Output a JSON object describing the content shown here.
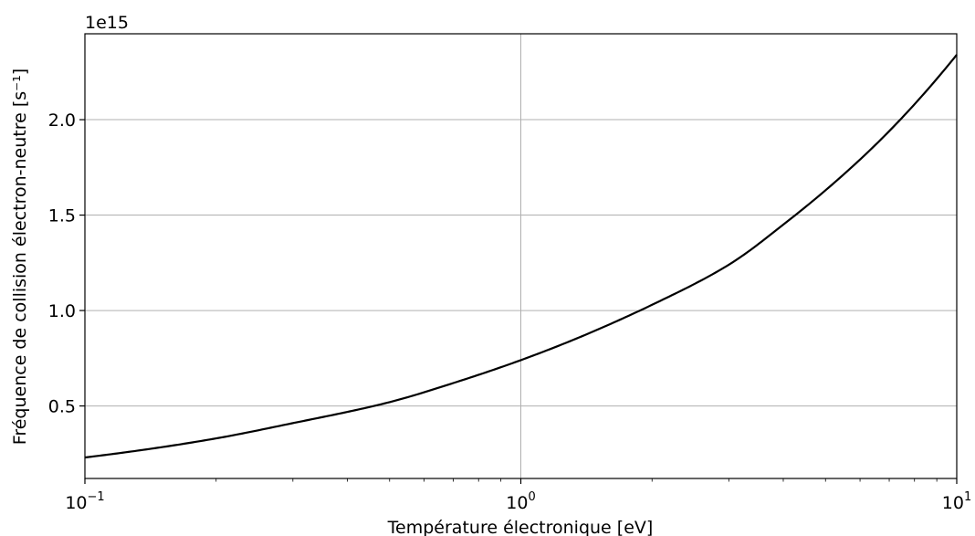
{
  "chart_data": {
    "type": "line",
    "xlabel": "Température électronique [eV]",
    "ylabel": "Fréquence de collision électron-neutre [s⁻¹]",
    "y_offset_label": "1e15",
    "x_scale": "log",
    "xlim": [
      0.1,
      10
    ],
    "ylim": [
      120000000000000.0,
      2450000000000000.0
    ],
    "grid": true,
    "x_ticks": [
      {
        "value": 0.1,
        "base": "10",
        "exponent": "−1"
      },
      {
        "value": 1,
        "base": "10",
        "exponent": "0"
      },
      {
        "value": 10,
        "base": "10",
        "exponent": "1"
      }
    ],
    "y_ticks": [
      {
        "value": 500000000000000.0,
        "label": "0.5"
      },
      {
        "value": 1000000000000000.0,
        "label": "1.0"
      },
      {
        "value": 1500000000000000.0,
        "label": "1.5"
      },
      {
        "value": 2000000000000000.0,
        "label": "2.0"
      }
    ],
    "series": [
      {
        "color": "#000000",
        "x": [
          0.1,
          0.2,
          0.3,
          0.5,
          0.7,
          1,
          1.5,
          2,
          3,
          4,
          5,
          7,
          10
        ],
        "y": [
          230000000000000.0,
          330000000000000.0,
          410000000000000.0,
          520000000000000.0,
          620000000000000.0,
          740000000000000.0,
          900000000000000.0,
          1030000000000000.0,
          1240000000000000.0,
          1450000000000000.0,
          1630000000000000.0,
          1940000000000000.0,
          2340000000000000.0
        ]
      }
    ]
  }
}
